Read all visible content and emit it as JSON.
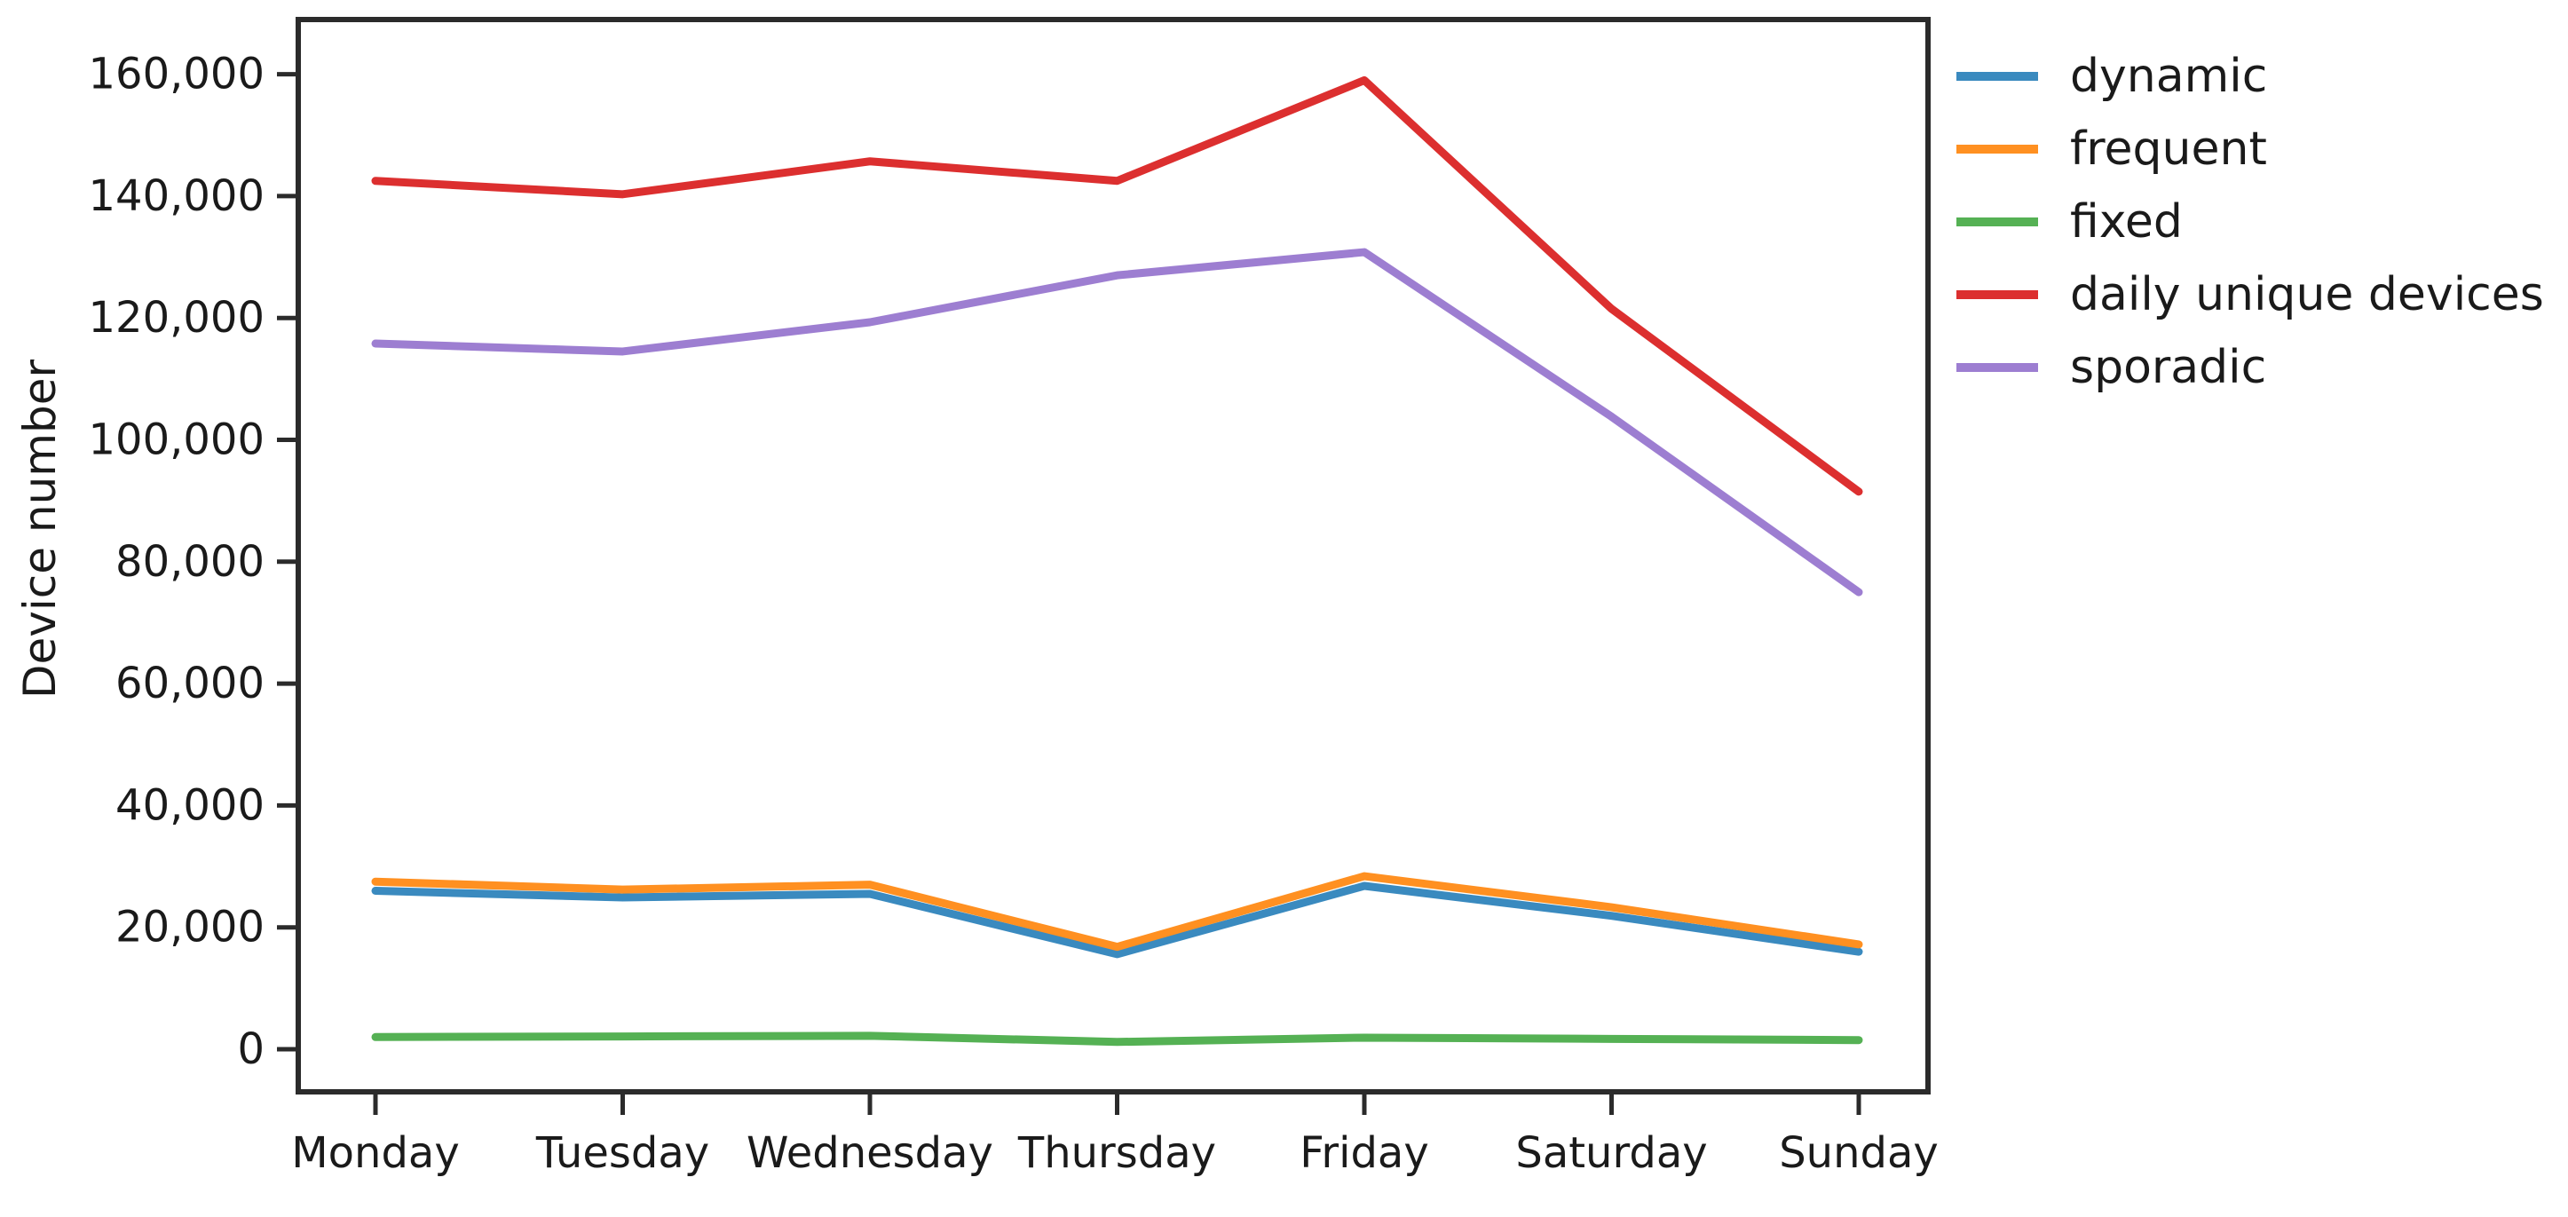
{
  "figure": {
    "background": "#ffffff",
    "axis_color": "#2b2b2b",
    "tick_color": "#2b2b2b"
  },
  "chart_data": {
    "type": "line",
    "title": "",
    "xlabel": "",
    "ylabel": "Device number",
    "categories": [
      "Monday",
      "Tuesday",
      "Wednesday",
      "Thursday",
      "Friday",
      "Saturday",
      "Sunday"
    ],
    "series": [
      {
        "name": "dynamic",
        "color": "#3a8abf",
        "values": [
          26000,
          24900,
          25500,
          15600,
          26800,
          21900,
          16000
        ]
      },
      {
        "name": "frequent",
        "color": "#ff9021",
        "values": [
          27500,
          26200,
          27000,
          16800,
          28400,
          23300,
          17200
        ]
      },
      {
        "name": "fixed",
        "color": "#55b154",
        "values": [
          2000,
          2100,
          2200,
          1200,
          1900,
          1700,
          1500
        ]
      },
      {
        "name": "daily unique devices",
        "color": "#dc2f2f",
        "values": [
          142500,
          140300,
          145700,
          142500,
          159000,
          121500,
          91500
        ]
      },
      {
        "name": "sporadic",
        "color": "#9d7ed1",
        "values": [
          115800,
          114500,
          119300,
          127000,
          130800,
          103800,
          75000
        ]
      }
    ],
    "ylim": [
      0,
      160000
    ],
    "yticks": [
      0,
      20000,
      40000,
      60000,
      80000,
      100000,
      120000,
      140000,
      160000
    ],
    "ytick_labels": [
      "0",
      "20,000",
      "40,000",
      "60,000",
      "80,000",
      "100,000",
      "120,000",
      "140,000",
      "160,000"
    ],
    "grid": false,
    "legend_position": "right-top-outside"
  }
}
